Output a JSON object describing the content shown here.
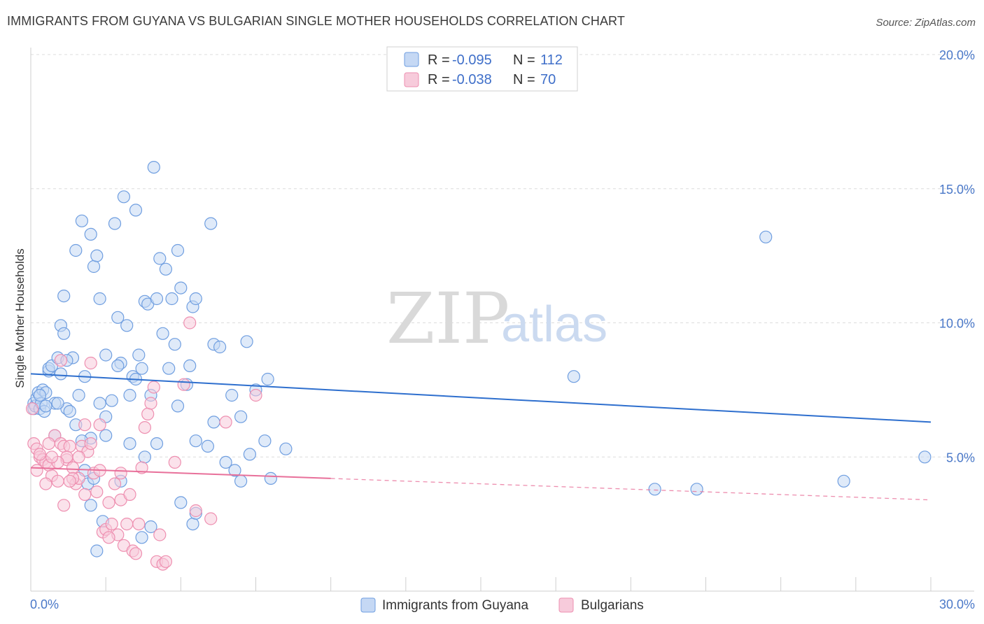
{
  "title": "IMMIGRANTS FROM GUYANA VS BULGARIAN SINGLE MOTHER HOUSEHOLDS CORRELATION CHART",
  "source": "Source: ZipAtlas.com",
  "watermark": {
    "zip": "ZIP",
    "atlas": "atlas"
  },
  "colors": {
    "blue": "#6f9ee0",
    "blue_fill": "#c5d8f4",
    "blue_line": "#2e6fce",
    "pink": "#ee8fb0",
    "pink_fill": "#f7cbdb",
    "pink_line": "#e8709a",
    "grid": "#dcdcdc",
    "tick_text": "#4a78c8"
  },
  "legend": {
    "rows": [
      {
        "r_label": "R =",
        "r_value": "-0.095",
        "n_label": "N =",
        "n_value": "112",
        "swatch": "blue"
      },
      {
        "r_label": "R =",
        "r_value": "-0.038",
        "n_label": "N =",
        "n_value": "70",
        "swatch": "pink"
      }
    ]
  },
  "chart_data": {
    "type": "scatter",
    "title": "IMMIGRANTS FROM GUYANA VS BULGARIAN SINGLE MOTHER HOUSEHOLDS CORRELATION CHART",
    "xlabel": "",
    "ylabel": "Single Mother Households",
    "xlim": [
      0,
      30
    ],
    "ylim": [
      0,
      20
    ],
    "x_tick_labels": [
      "0.0%",
      "30.0%"
    ],
    "y_ticks": [
      5,
      10,
      15,
      20
    ],
    "y_tick_labels": [
      "5.0%",
      "10.0%",
      "15.0%",
      "20.0%"
    ],
    "grid": true,
    "legend_position": "top-center",
    "series": [
      {
        "name": "Immigrants from Guyana",
        "color": "blue",
        "r": -0.095,
        "n": 112,
        "trend": {
          "x0": 0,
          "y0": 8.1,
          "x1": 30,
          "y1": 6.3,
          "dashed_from": null
        },
        "points": [
          [
            0.1,
            6.8
          ],
          [
            0.1,
            7.0
          ],
          [
            0.15,
            6.9
          ],
          [
            0.2,
            7.2
          ],
          [
            0.25,
            7.4
          ],
          [
            0.3,
            6.8
          ],
          [
            0.35,
            7.0
          ],
          [
            0.4,
            7.5
          ],
          [
            0.45,
            6.7
          ],
          [
            0.5,
            7.4
          ],
          [
            0.6,
            8.2
          ],
          [
            0.6,
            8.3
          ],
          [
            0.7,
            8.4
          ],
          [
            0.8,
            7.0
          ],
          [
            0.9,
            8.7
          ],
          [
            1.0,
            9.9
          ],
          [
            1.1,
            9.6
          ],
          [
            1.1,
            11.0
          ],
          [
            1.2,
            6.8
          ],
          [
            1.3,
            6.7
          ],
          [
            1.4,
            8.7
          ],
          [
            1.5,
            12.7
          ],
          [
            1.6,
            7.3
          ],
          [
            1.7,
            13.8
          ],
          [
            1.8,
            8.0
          ],
          [
            2.0,
            13.3
          ],
          [
            2.1,
            12.1
          ],
          [
            2.2,
            12.5
          ],
          [
            2.3,
            10.9
          ],
          [
            2.3,
            7.0
          ],
          [
            2.5,
            6.5
          ],
          [
            2.5,
            8.8
          ],
          [
            2.8,
            13.7
          ],
          [
            2.9,
            10.2
          ],
          [
            3.0,
            8.5
          ],
          [
            3.1,
            14.7
          ],
          [
            3.2,
            9.9
          ],
          [
            3.3,
            7.3
          ],
          [
            3.4,
            8.0
          ],
          [
            3.5,
            14.2
          ],
          [
            3.6,
            8.8
          ],
          [
            3.7,
            8.3
          ],
          [
            3.8,
            10.8
          ],
          [
            3.9,
            10.7
          ],
          [
            4.0,
            7.3
          ],
          [
            4.1,
            15.8
          ],
          [
            4.2,
            10.9
          ],
          [
            4.3,
            12.4
          ],
          [
            4.4,
            9.6
          ],
          [
            4.5,
            12.0
          ],
          [
            4.6,
            8.3
          ],
          [
            4.7,
            10.9
          ],
          [
            4.8,
            9.2
          ],
          [
            4.9,
            12.7
          ],
          [
            5.0,
            11.3
          ],
          [
            5.2,
            7.7
          ],
          [
            5.3,
            8.4
          ],
          [
            5.4,
            10.6
          ],
          [
            5.5,
            10.9
          ],
          [
            6.0,
            13.7
          ],
          [
            6.1,
            9.2
          ],
          [
            6.3,
            9.1
          ],
          [
            7.2,
            9.3
          ],
          [
            7.5,
            7.5
          ],
          [
            7.9,
            7.9
          ],
          [
            1.5,
            6.2
          ],
          [
            2.0,
            5.7
          ],
          [
            2.5,
            5.8
          ],
          [
            0.8,
            5.8
          ],
          [
            3.3,
            5.5
          ],
          [
            3.8,
            5.0
          ],
          [
            4.2,
            5.5
          ],
          [
            5.5,
            5.6
          ],
          [
            5.9,
            5.4
          ],
          [
            6.1,
            6.3
          ],
          [
            7.0,
            6.5
          ],
          [
            7.3,
            5.1
          ],
          [
            7.8,
            5.6
          ],
          [
            8.5,
            5.3
          ],
          [
            6.8,
            4.5
          ],
          [
            1.8,
            4.5
          ],
          [
            1.9,
            4.0
          ],
          [
            2.0,
            3.2
          ],
          [
            2.1,
            4.2
          ],
          [
            2.4,
            2.6
          ],
          [
            2.2,
            1.5
          ],
          [
            3.0,
            4.1
          ],
          [
            3.7,
            2.0
          ],
          [
            4.0,
            2.4
          ],
          [
            5.0,
            3.3
          ],
          [
            5.4,
            2.5
          ],
          [
            5.5,
            2.9
          ],
          [
            6.5,
            4.8
          ],
          [
            7.0,
            4.1
          ],
          [
            8.0,
            4.2
          ],
          [
            0.9,
            7.0
          ],
          [
            1.2,
            8.6
          ],
          [
            1.0,
            8.1
          ],
          [
            2.7,
            7.1
          ],
          [
            4.9,
            6.9
          ],
          [
            18.1,
            8.0
          ],
          [
            20.8,
            3.8
          ],
          [
            22.2,
            3.8
          ],
          [
            27.1,
            4.1
          ],
          [
            29.8,
            5.0
          ],
          [
            24.5,
            13.2
          ],
          [
            0.3,
            7.3
          ],
          [
            0.5,
            6.9
          ],
          [
            1.7,
            5.6
          ],
          [
            3.5,
            7.9
          ],
          [
            6.7,
            7.3
          ],
          [
            2.9,
            8.4
          ]
        ]
      },
      {
        "name": "Bulgarians",
        "color": "pink",
        "r": -0.038,
        "n": 70,
        "trend": {
          "x0": 0,
          "y0": 4.6,
          "x1": 30,
          "y1": 3.4,
          "dashed_from": 10
        },
        "points": [
          [
            0.05,
            6.8
          ],
          [
            0.1,
            5.5
          ],
          [
            0.2,
            5.3
          ],
          [
            0.3,
            5.0
          ],
          [
            0.4,
            4.9
          ],
          [
            0.5,
            4.8
          ],
          [
            0.6,
            4.7
          ],
          [
            0.7,
            4.3
          ],
          [
            0.8,
            5.8
          ],
          [
            0.9,
            4.1
          ],
          [
            1.0,
            5.5
          ],
          [
            1.1,
            5.4
          ],
          [
            1.2,
            4.9
          ],
          [
            1.3,
            5.4
          ],
          [
            1.4,
            4.6
          ],
          [
            1.5,
            4.0
          ],
          [
            1.6,
            4.2
          ],
          [
            1.7,
            5.4
          ],
          [
            1.8,
            6.2
          ],
          [
            1.9,
            5.2
          ],
          [
            2.0,
            5.5
          ],
          [
            2.1,
            4.4
          ],
          [
            2.2,
            3.7
          ],
          [
            2.3,
            4.5
          ],
          [
            2.4,
            2.2
          ],
          [
            2.5,
            2.3
          ],
          [
            2.6,
            3.3
          ],
          [
            2.7,
            2.5
          ],
          [
            2.8,
            4.0
          ],
          [
            2.9,
            2.1
          ],
          [
            3.0,
            3.4
          ],
          [
            3.1,
            1.7
          ],
          [
            3.2,
            2.5
          ],
          [
            3.3,
            3.6
          ],
          [
            3.4,
            1.5
          ],
          [
            3.5,
            1.4
          ],
          [
            3.6,
            2.5
          ],
          [
            3.7,
            4.6
          ],
          [
            3.8,
            6.1
          ],
          [
            3.9,
            6.6
          ],
          [
            4.0,
            7.0
          ],
          [
            4.1,
            7.6
          ],
          [
            4.2,
            1.1
          ],
          [
            4.3,
            2.1
          ],
          [
            4.4,
            1.0
          ],
          [
            4.5,
            1.1
          ],
          [
            1.0,
            8.6
          ],
          [
            1.2,
            5.0
          ],
          [
            1.4,
            4.2
          ],
          [
            2.0,
            8.5
          ],
          [
            5.1,
            7.7
          ],
          [
            5.3,
            10.0
          ],
          [
            5.5,
            3.0
          ],
          [
            6.0,
            2.7
          ],
          [
            6.5,
            6.3
          ],
          [
            7.5,
            7.3
          ],
          [
            1.8,
            3.6
          ],
          [
            2.3,
            6.2
          ],
          [
            0.3,
            5.1
          ],
          [
            0.6,
            5.5
          ],
          [
            0.9,
            4.8
          ],
          [
            1.3,
            4.1
          ],
          [
            1.6,
            5.0
          ],
          [
            0.5,
            4.0
          ],
          [
            2.6,
            2.0
          ],
          [
            3.0,
            4.4
          ],
          [
            4.8,
            4.8
          ],
          [
            1.1,
            3.2
          ],
          [
            0.2,
            4.5
          ],
          [
            0.7,
            5.0
          ]
        ]
      }
    ]
  },
  "bottom_legend": [
    {
      "label": "Immigrants from Guyana",
      "color": "blue"
    },
    {
      "label": "Bulgarians",
      "color": "pink"
    }
  ]
}
